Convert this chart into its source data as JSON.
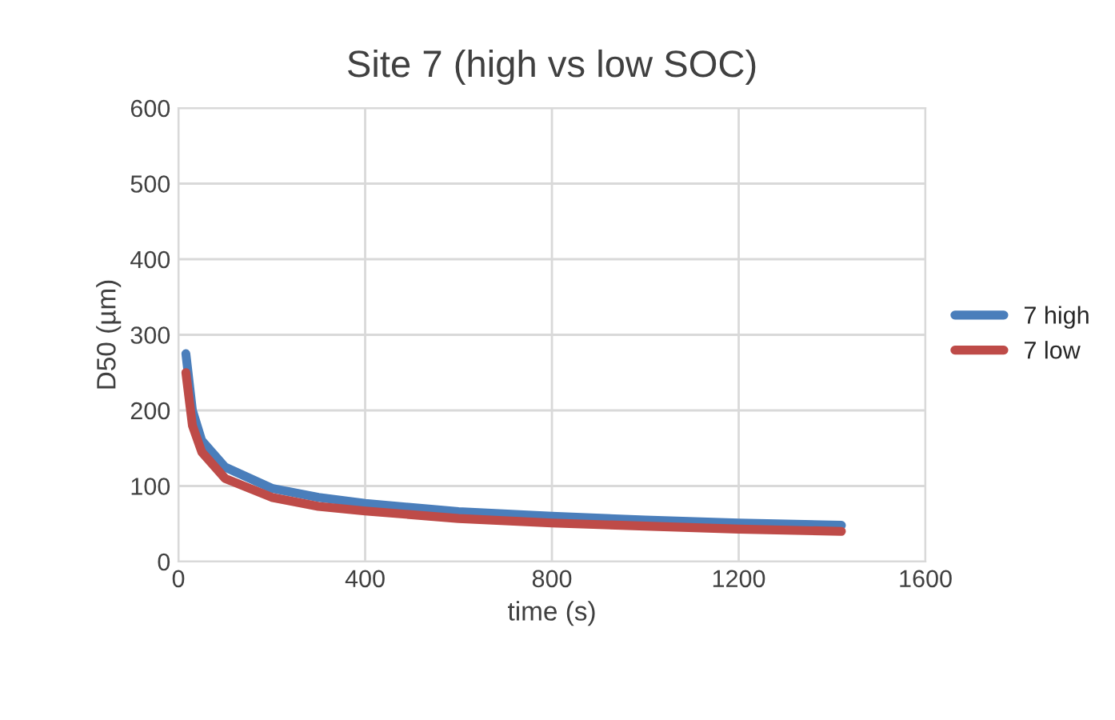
{
  "chart_data": {
    "type": "line",
    "title": "Site 7 (high vs low SOC)",
    "xlabel": "time (s)",
    "ylabel": "D50 (µm)",
    "x": [
      16,
      30,
      50,
      100,
      200,
      300,
      400,
      600,
      800,
      1000,
      1200,
      1420
    ],
    "series": [
      {
        "name": "7 high",
        "color": "#4a7ebb",
        "values": [
          275,
          200,
          160,
          125,
          97,
          85,
          77,
          66,
          60,
          55,
          51,
          48
        ]
      },
      {
        "name": "7 low",
        "color": "#be4b48",
        "values": [
          250,
          180,
          145,
          110,
          85,
          73,
          67,
          57,
          51,
          47,
          43,
          40
        ]
      }
    ],
    "xlim": [
      0,
      1600
    ],
    "xticks": [
      0,
      400,
      800,
      1200,
      1600
    ],
    "ylim": [
      0,
      600
    ],
    "yticks": [
      0,
      100,
      200,
      300,
      400,
      500,
      600
    ],
    "grid": true,
    "legend": "right",
    "marker": "none",
    "line_style": "solid"
  }
}
